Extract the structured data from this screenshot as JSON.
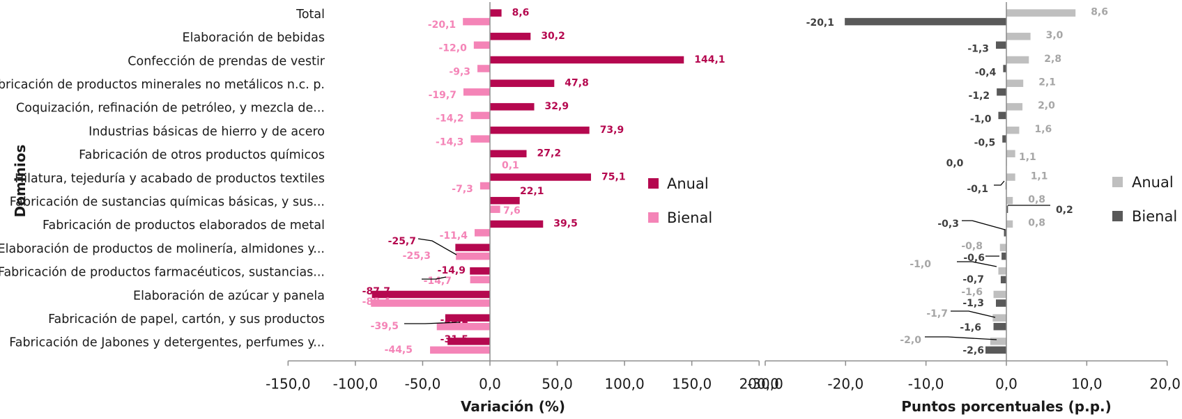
{
  "chart_data": [
    {
      "type": "bar",
      "orientation": "horizontal",
      "ylabel": "Dominios",
      "xlabel": "Variación (%)",
      "xlim": [
        -150,
        200
      ],
      "xticks": [
        "-150,0",
        "-100,0",
        "-50,0",
        "0,0",
        "50,0",
        "100,0",
        "150,0",
        "200,0"
      ],
      "grid": false,
      "legend_position": "right",
      "categories": [
        "Total",
        "Elaboración de bebidas",
        "Confección de prendas de vestir",
        "Fabricación de productos minerales no metálicos n.c. p.",
        "Coquización, refinación de petróleo, y mezcla de...",
        "Industrias básicas de hierro y de acero",
        "Fabricación de otros productos químicos",
        "Hilatura, tejeduría y acabado de productos textiles",
        "Fabricación de sustancias químicas básicas, y sus...",
        "Fabricación de productos elaborados de metal",
        "Elaboración de productos de molinería, almidones y...",
        "Fabricación de productos farmacéuticos, sustancias...",
        "Elaboración de azúcar y panela",
        "Fabricación de papel, cartón, y sus productos",
        "Fabricación de Jabones y detergentes, perfumes y..."
      ],
      "series": [
        {
          "name": "Anual",
          "color": "#b5084f",
          "values": [
            8.6,
            30.2,
            144.1,
            47.8,
            32.9,
            73.9,
            27.2,
            75.1,
            22.1,
            39.5,
            -25.7,
            -14.9,
            -87.7,
            -33.2,
            -31.5
          ],
          "labels": [
            "8,6",
            "30,2",
            "144,1",
            "47,8",
            "32,9",
            "73,9",
            "27,2",
            "75,1",
            "22,1",
            "39,5",
            "-25,7",
            "-14,9",
            "-87,7",
            "-33,2",
            "-31,5"
          ]
        },
        {
          "name": "Bienal",
          "color": "#f484b7",
          "values": [
            -20.1,
            -12.0,
            -9.3,
            -19.7,
            -14.2,
            -14.3,
            0.1,
            -7.3,
            7.6,
            -11.4,
            -25.3,
            -14.7,
            -88.4,
            -39.5,
            -44.5
          ],
          "labels": [
            "-20,1",
            "-12,0",
            "-9,3",
            "-19,7",
            "-14,2",
            "-14,3",
            "0,1",
            "-7,3",
            "7,6",
            "-11,4",
            "-25,3",
            "-14,7",
            "-88,4",
            "-39,5",
            "-44,5"
          ]
        }
      ]
    },
    {
      "type": "bar",
      "orientation": "horizontal",
      "xlabel": "Puntos porcentuales (p.p.)",
      "xlim": [
        -30,
        20
      ],
      "xticks": [
        "-30,0",
        "-20,0",
        "-10,0",
        "0,0",
        "10,0",
        "20,0"
      ],
      "grid": false,
      "legend_position": "right",
      "series": [
        {
          "name": "Anual",
          "color": "#bfbfbf",
          "values": [
            8.6,
            3.0,
            2.8,
            2.1,
            2.0,
            1.6,
            1.1,
            1.1,
            0.8,
            0.8,
            -0.8,
            -1.0,
            -1.6,
            -1.7,
            -2.0
          ],
          "labels": [
            "8,6",
            "3,0",
            "2,8",
            "2,1",
            "2,0",
            "1,6",
            "1,1",
            "1,1",
            "0,8",
            "0,8",
            "-0,8",
            "-1,0",
            "-1,6",
            "-1,7",
            "-2,0"
          ]
        },
        {
          "name": "Bienal",
          "color": "#595959",
          "values": [
            -20.1,
            -1.3,
            -0.4,
            -1.2,
            -1.0,
            -0.5,
            0.0,
            -0.1,
            0.2,
            -0.3,
            -0.6,
            -0.7,
            -1.3,
            -1.6,
            -2.6
          ],
          "labels": [
            "-20,1",
            "-1,3",
            "-0,4",
            "-1,2",
            "-1,0",
            "-0,5",
            "0,0",
            "-0,1",
            "0,2",
            "-0,3",
            "-0,6",
            "-0,7",
            "-1,3",
            "-1,6",
            "-2,6"
          ]
        }
      ]
    }
  ]
}
